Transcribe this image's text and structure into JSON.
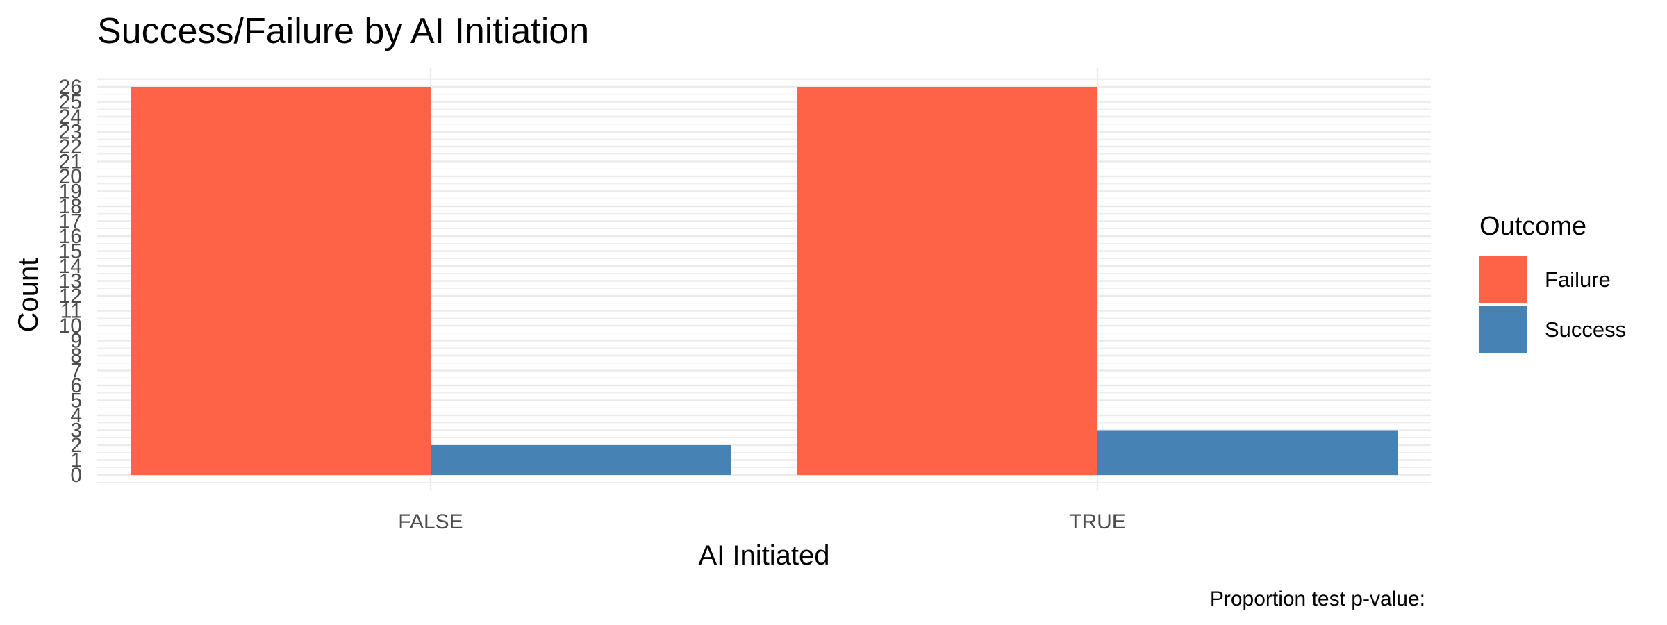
{
  "chart_data": {
    "type": "bar",
    "title": "Success/Failure by AI Initiation",
    "xlabel": "AI Initiated",
    "ylabel": "Count",
    "categories": [
      "FALSE",
      "TRUE"
    ],
    "series": [
      {
        "name": "Failure",
        "color": "#FF6347",
        "values": [
          26,
          26
        ]
      },
      {
        "name": "Success",
        "color": "#4682B4",
        "values": [
          2,
          3
        ]
      }
    ],
    "ylim": [
      0,
      26
    ],
    "yticks": [
      0,
      1,
      2,
      3,
      4,
      5,
      6,
      7,
      8,
      9,
      10,
      11,
      12,
      13,
      14,
      15,
      16,
      17,
      18,
      19,
      20,
      21,
      22,
      23,
      24,
      25,
      26
    ],
    "grid": true,
    "legend": {
      "title": "Outcome",
      "position": "right"
    },
    "caption": "Proportion test p-value:"
  }
}
